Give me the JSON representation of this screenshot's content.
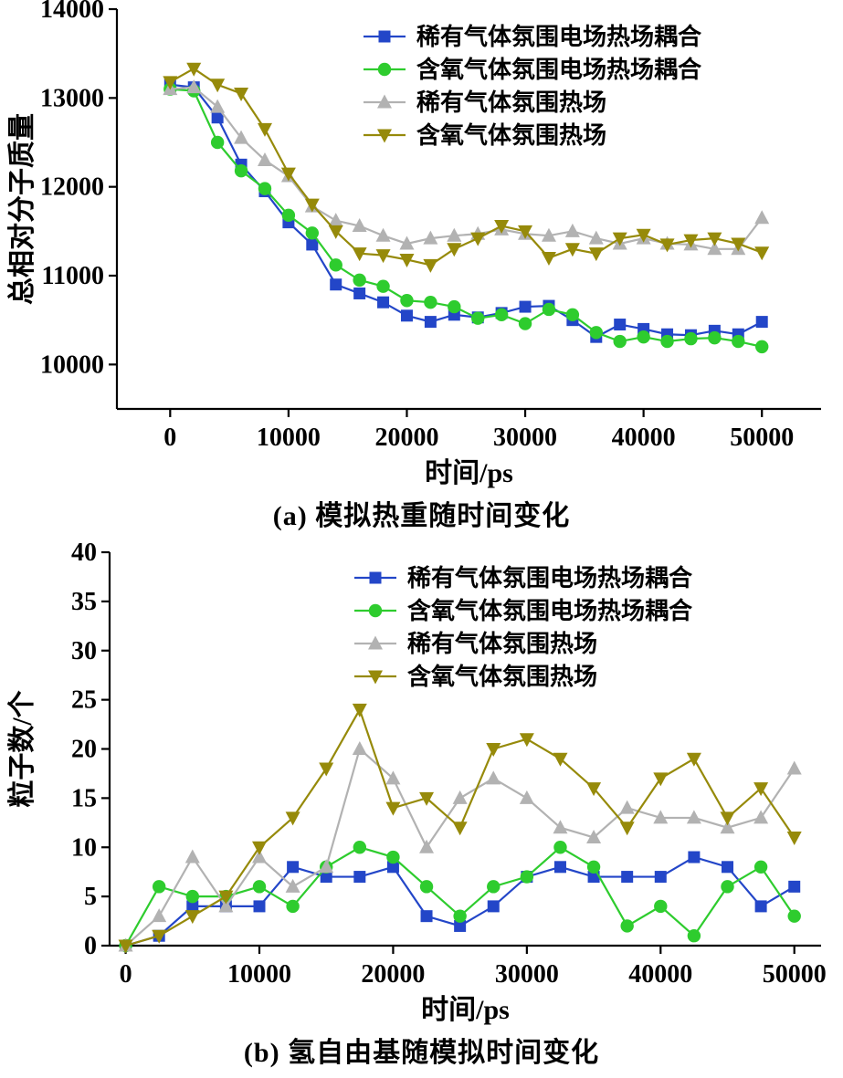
{
  "page": {
    "background": "#ffffff",
    "axis_color": "#000000",
    "text_color": "#000000"
  },
  "captions": {
    "a": "(a) 模拟热重随时间变化",
    "b": "(b) 氢自由基随模拟时间变化"
  },
  "chart_data": [
    {
      "id": "a",
      "type": "line",
      "title": "",
      "caption": "(a) 模拟热重随时间变化",
      "xlabel": "时间/ps",
      "ylabel": "总相对分子质量",
      "xlim": [
        -4500,
        55000
      ],
      "ylim": [
        9500,
        14000
      ],
      "xticks": [
        0,
        10000,
        20000,
        30000,
        40000,
        50000
      ],
      "yticks": [
        10000,
        11000,
        12000,
        13000,
        14000
      ],
      "grid": false,
      "legend_position": "top-center-right",
      "x": [
        0,
        2000,
        4000,
        6000,
        8000,
        10000,
        12000,
        14000,
        16000,
        18000,
        20000,
        22000,
        24000,
        26000,
        28000,
        30000,
        32000,
        34000,
        36000,
        38000,
        40000,
        42000,
        44000,
        46000,
        48000,
        50000
      ],
      "series": [
        {
          "name": "稀有气体氛围电场热场耦合",
          "marker": "square",
          "color": "#2346c8",
          "values": [
            13150,
            13120,
            12780,
            12250,
            11950,
            11600,
            11350,
            10900,
            10800,
            10700,
            10550,
            10480,
            10560,
            10530,
            10580,
            10650,
            10660,
            10500,
            10310,
            10450,
            10400,
            10340,
            10330,
            10380,
            10340,
            10480
          ]
        },
        {
          "name": "含氧气体氛围电场热场耦合",
          "marker": "circle",
          "color": "#2ecc2e",
          "values": [
            13100,
            13080,
            12500,
            12180,
            11980,
            11680,
            11480,
            11120,
            10950,
            10880,
            10720,
            10700,
            10650,
            10520,
            10560,
            10460,
            10620,
            10560,
            10360,
            10260,
            10310,
            10260,
            10290,
            10300,
            10260,
            10200
          ]
        },
        {
          "name": "稀有气体氛围热场",
          "marker": "triangle-up",
          "color": "#b2b2b2",
          "values": [
            13100,
            13120,
            12900,
            12550,
            12300,
            12120,
            11780,
            11620,
            11560,
            11450,
            11360,
            11420,
            11450,
            11470,
            11520,
            11470,
            11450,
            11500,
            11420,
            11360,
            11420,
            11360,
            11350,
            11300,
            11300,
            11650
          ]
        },
        {
          "name": "含氧气体氛围热场",
          "marker": "triangle-down",
          "color": "#968a0a",
          "values": [
            13180,
            13330,
            13150,
            13050,
            12650,
            12150,
            11800,
            11500,
            11250,
            11230,
            11180,
            11120,
            11300,
            11420,
            11560,
            11500,
            11200,
            11300,
            11250,
            11420,
            11460,
            11350,
            11400,
            11420,
            11360,
            11260
          ]
        }
      ]
    },
    {
      "id": "b",
      "type": "line",
      "title": "",
      "caption": "(b) 氢自由基随模拟时间变化",
      "xlabel": "时间/ps",
      "ylabel": "粒子数/个",
      "xlim": [
        -1200,
        52000
      ],
      "ylim": [
        0,
        40
      ],
      "xticks": [
        0,
        10000,
        20000,
        30000,
        40000,
        50000
      ],
      "yticks": [
        0,
        5,
        10,
        15,
        20,
        25,
        30,
        35,
        40
      ],
      "grid": false,
      "legend_position": "top-center-right",
      "x": [
        0,
        2500,
        5000,
        7500,
        10000,
        12500,
        15000,
        17500,
        20000,
        22500,
        25000,
        27500,
        30000,
        32500,
        35000,
        37500,
        40000,
        42500,
        45000,
        47500,
        50000
      ],
      "series": [
        {
          "name": "稀有气体氛围电场热场耦合",
          "marker": "square",
          "color": "#2346c8",
          "values": [
            0,
            1,
            4,
            4,
            4,
            8,
            7,
            7,
            8,
            3,
            2,
            4,
            7,
            8,
            7,
            7,
            7,
            9,
            8,
            4,
            6
          ]
        },
        {
          "name": "含氧气体氛围电场热场耦合",
          "marker": "circle",
          "color": "#2ecc2e",
          "values": [
            0,
            6,
            5,
            5,
            6,
            4,
            8,
            10,
            9,
            6,
            3,
            6,
            7,
            10,
            8,
            2,
            4,
            1,
            6,
            8,
            3
          ]
        },
        {
          "name": "稀有气体氛围热场",
          "marker": "triangle-up",
          "color": "#b2b2b2",
          "values": [
            0,
            3,
            9,
            4,
            9,
            6,
            8,
            20,
            17,
            10,
            15,
            17,
            15,
            12,
            11,
            14,
            13,
            13,
            12,
            13,
            18
          ]
        },
        {
          "name": "含氧气体氛围热场",
          "marker": "triangle-down",
          "color": "#968a0a",
          "values": [
            0,
            1,
            3,
            5,
            10,
            13,
            18,
            24,
            14,
            15,
            12,
            20,
            21,
            19,
            16,
            12,
            17,
            19,
            13,
            16,
            11
          ]
        }
      ]
    }
  ]
}
